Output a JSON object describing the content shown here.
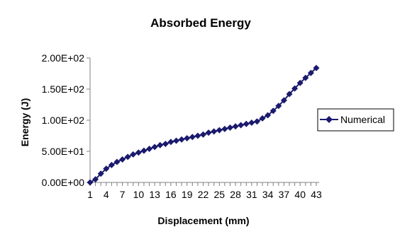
{
  "chart_data": {
    "type": "line",
    "title": "Absorbed Energy",
    "xlabel": "Displacement (mm)",
    "ylabel": "Energy (J)",
    "x_tick_labels": [
      "1",
      "4",
      "7",
      "10",
      "13",
      "16",
      "19",
      "22",
      "25",
      "28",
      "31",
      "34",
      "37",
      "40",
      "43"
    ],
    "y_tick_labels": [
      "0.00E+00",
      "5.00E+01",
      "1.00E+02",
      "1.50E+02",
      "2.00E+02"
    ],
    "ylim": [
      0,
      200
    ],
    "xlim": [
      1,
      43
    ],
    "grid": false,
    "legend_position": "right",
    "series": [
      {
        "name": "Numerical",
        "color": "#1a1a6e",
        "marker": "diamond",
        "x": [
          1,
          2,
          3,
          4,
          5,
          6,
          7,
          8,
          9,
          10,
          11,
          12,
          13,
          14,
          15,
          16,
          17,
          18,
          19,
          20,
          21,
          22,
          23,
          24,
          25,
          26,
          27,
          28,
          29,
          30,
          31,
          32,
          33,
          34,
          35,
          36,
          37,
          38,
          39,
          40,
          41,
          42,
          43
        ],
        "values": [
          0,
          5,
          14,
          22,
          28,
          33,
          37,
          41,
          45,
          48,
          51,
          54,
          57,
          60,
          62,
          65,
          67,
          69,
          71,
          73,
          75,
          77,
          80,
          82,
          84,
          86,
          88,
          90,
          92,
          94,
          96,
          98,
          103,
          108,
          115,
          123,
          132,
          142,
          151,
          160,
          168,
          176,
          184
        ]
      }
    ]
  }
}
